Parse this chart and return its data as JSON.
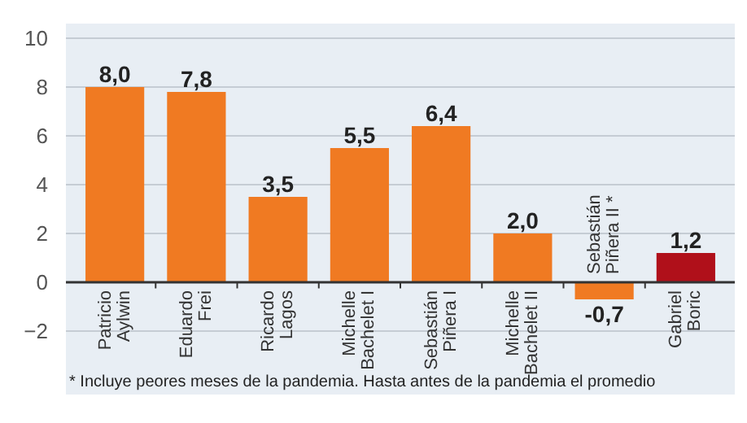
{
  "chart_data": {
    "type": "bar",
    "categories": [
      "Patricio\nAylwin",
      "Eduardo\nFrei",
      "Ricardo\nLagos",
      "Michelle\nBachelet I",
      "Sebastián\nPiñera I",
      "Michelle\nBachelet II",
      "Sebastián\nPiñera II *",
      "Gabriel\nBoric"
    ],
    "values": [
      8.0,
      7.8,
      3.5,
      5.5,
      6.4,
      2.0,
      -0.7,
      1.2
    ],
    "value_labels": [
      "8,0",
      "7,8",
      "3,5",
      "5,5",
      "6,4",
      "2,0",
      "-0,7",
      "1,2"
    ],
    "colors": [
      "#f07a22",
      "#f07a22",
      "#f07a22",
      "#f07a22",
      "#f07a22",
      "#f07a22",
      "#f07a22",
      "#b0101a"
    ],
    "ylim": [
      -4.6,
      10.6
    ],
    "yticks": [
      -2,
      0,
      2,
      4,
      6,
      8,
      10
    ],
    "grid": "y",
    "annotations": [
      "* Incluye peores meses de la pandemia. Hasta antes de la pandemia el promedio"
    ]
  }
}
